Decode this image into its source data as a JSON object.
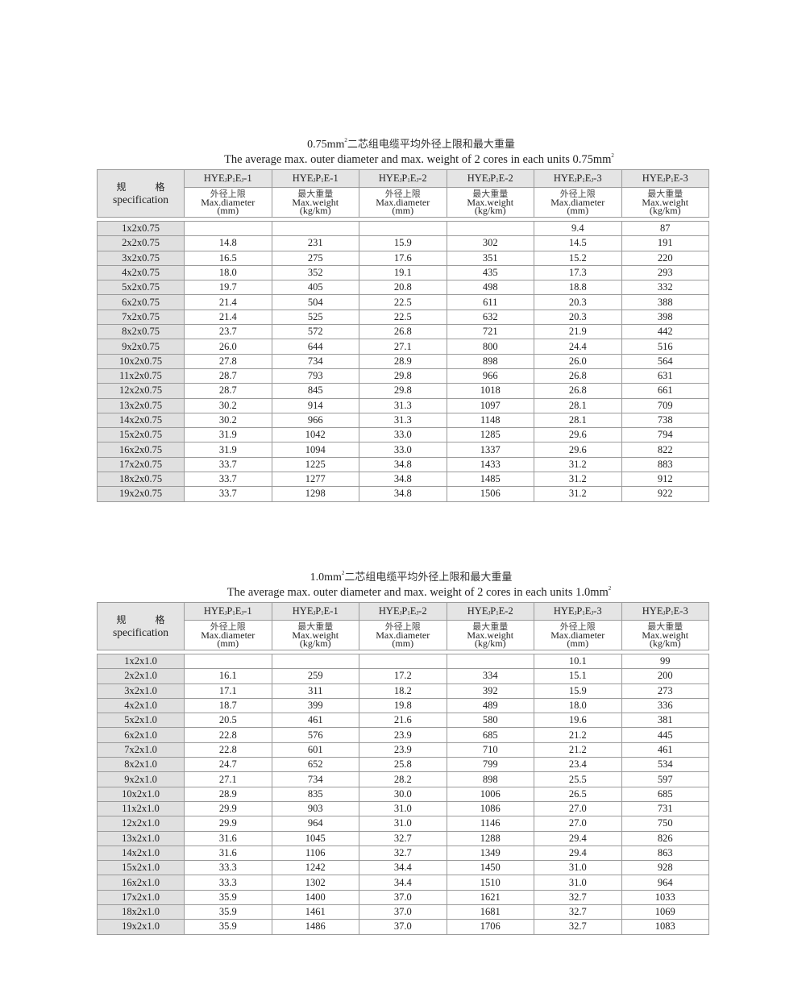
{
  "tables": [
    {
      "title_size": "0.75mm",
      "title_sup": "2",
      "title_cn": "二芯组电缆平均外径上限和最大重量",
      "subtitle": "The average max. outer diameter and max. weight of  2 cores in each units  0.75mm",
      "subtitle_sup": "2",
      "rows": [
        [
          "1x2x0.75",
          "",
          "",
          "",
          "",
          "9.4",
          "87"
        ],
        [
          "2x2x0.75",
          "14.8",
          "231",
          "15.9",
          "302",
          "14.5",
          "191"
        ],
        [
          "3x2x0.75",
          "16.5",
          "275",
          "17.6",
          "351",
          "15.2",
          "220"
        ],
        [
          "4x2x0.75",
          "18.0",
          "352",
          "19.1",
          "435",
          "17.3",
          "293"
        ],
        [
          "5x2x0.75",
          "19.7",
          "405",
          "20.8",
          "498",
          "18.8",
          "332"
        ],
        [
          "6x2x0.75",
          "21.4",
          "504",
          "22.5",
          "611",
          "20.3",
          "388"
        ],
        [
          "7x2x0.75",
          "21.4",
          "525",
          "22.5",
          "632",
          "20.3",
          "398"
        ],
        [
          "8x2x0.75",
          "23.7",
          "572",
          "26.8",
          "721",
          "21.9",
          "442"
        ],
        [
          "9x2x0.75",
          "26.0",
          "644",
          "27.1",
          "800",
          "24.4",
          "516"
        ],
        [
          "10x2x0.75",
          "27.8",
          "734",
          "28.9",
          "898",
          "26.0",
          "564"
        ],
        [
          "11x2x0.75",
          "28.7",
          "793",
          "29.8",
          "966",
          "26.8",
          "631"
        ],
        [
          "12x2x0.75",
          "28.7",
          "845",
          "29.8",
          "1018",
          "26.8",
          "661"
        ],
        [
          "13x2x0.75",
          "30.2",
          "914",
          "31.3",
          "1097",
          "28.1",
          "709"
        ],
        [
          "14x2x0.75",
          "30.2",
          "966",
          "31.3",
          "1148",
          "28.1",
          "738"
        ],
        [
          "15x2x0.75",
          "31.9",
          "1042",
          "33.0",
          "1285",
          "29.6",
          "794"
        ],
        [
          "16x2x0.75",
          "31.9",
          "1094",
          "33.0",
          "1337",
          "29.6",
          "822"
        ],
        [
          "17x2x0.75",
          "33.7",
          "1225",
          "34.8",
          "1433",
          "31.2",
          "883"
        ],
        [
          "18x2x0.75",
          "33.7",
          "1277",
          "34.8",
          "1485",
          "31.2",
          "912"
        ],
        [
          "19x2x0.75",
          "33.7",
          "1298",
          "34.8",
          "1506",
          "31.2",
          "922"
        ]
      ]
    },
    {
      "title_size": "1.0mm",
      "title_sup": "2",
      "title_cn": "二芯组电缆平均外径上限和最大重量",
      "subtitle": "The average max. outer diameter and max. weight of  2 cores in each units  1.0mm",
      "subtitle_sup": "2",
      "rows": [
        [
          "1x2x1.0",
          "",
          "",
          "",
          "",
          "10.1",
          "99"
        ],
        [
          "2x2x1.0",
          "16.1",
          "259",
          "17.2",
          "334",
          "15.1",
          "200"
        ],
        [
          "3x2x1.0",
          "17.1",
          "311",
          "18.2",
          "392",
          "15.9",
          "273"
        ],
        [
          "4x2x1.0",
          "18.7",
          "399",
          "19.8",
          "489",
          "18.0",
          "336"
        ],
        [
          "5x2x1.0",
          "20.5",
          "461",
          "21.6",
          "580",
          "19.6",
          "381"
        ],
        [
          "6x2x1.0",
          "22.8",
          "576",
          "23.9",
          "685",
          "21.2",
          "445"
        ],
        [
          "7x2x1.0",
          "22.8",
          "601",
          "23.9",
          "710",
          "21.2",
          "461"
        ],
        [
          "8x2x1.0",
          "24.7",
          "652",
          "25.8",
          "799",
          "23.4",
          "534"
        ],
        [
          "9x2x1.0",
          "27.1",
          "734",
          "28.2",
          "898",
          "25.5",
          "597"
        ],
        [
          "10x2x1.0",
          "28.9",
          "835",
          "30.0",
          "1006",
          "26.5",
          "685"
        ],
        [
          "11x2x1.0",
          "29.9",
          "903",
          "31.0",
          "1086",
          "27.0",
          "731"
        ],
        [
          "12x2x1.0",
          "29.9",
          "964",
          "31.0",
          "1146",
          "27.0",
          "750"
        ],
        [
          "13x2x1.0",
          "31.6",
          "1045",
          "32.7",
          "1288",
          "29.4",
          "826"
        ],
        [
          "14x2x1.0",
          "31.6",
          "1106",
          "32.7",
          "1349",
          "29.4",
          "863"
        ],
        [
          "15x2x1.0",
          "33.3",
          "1242",
          "34.4",
          "1450",
          "31.0",
          "928"
        ],
        [
          "16x2x1.0",
          "33.3",
          "1302",
          "34.4",
          "1510",
          "31.0",
          "964"
        ],
        [
          "17x2x1.0",
          "35.9",
          "1400",
          "37.0",
          "1621",
          "32.7",
          "1033"
        ],
        [
          "18x2x1.0",
          "35.9",
          "1461",
          "37.0",
          "1681",
          "32.7",
          "1069"
        ],
        [
          "19x2x1.0",
          "35.9",
          "1486",
          "37.0",
          "1706",
          "32.7",
          "1083"
        ]
      ]
    }
  ],
  "header": {
    "spec_cn": "规　　　格",
    "spec_en": "specification",
    "models": [
      [
        [
          "HYE",
          ""
        ],
        [
          "J",
          "sub"
        ],
        [
          "P",
          ""
        ],
        [
          "1",
          "sub"
        ],
        [
          "E",
          ""
        ],
        [
          "J",
          "sub"
        ],
        [
          "-1",
          ""
        ]
      ],
      [
        [
          "HYE",
          ""
        ],
        [
          "J",
          "sub"
        ],
        [
          "P",
          ""
        ],
        [
          "1",
          "sub"
        ],
        [
          "E-1",
          ""
        ]
      ],
      [
        [
          "HYE",
          ""
        ],
        [
          "J",
          "sub"
        ],
        [
          "P",
          ""
        ],
        [
          "1",
          "sub"
        ],
        [
          "E",
          ""
        ],
        [
          "J",
          "sub"
        ],
        [
          "-2",
          ""
        ]
      ],
      [
        [
          "HYE",
          ""
        ],
        [
          "J",
          "sub"
        ],
        [
          "P",
          ""
        ],
        [
          "1",
          "sub"
        ],
        [
          "E-2",
          ""
        ]
      ],
      [
        [
          "HYE",
          ""
        ],
        [
          "J",
          "sub"
        ],
        [
          "P",
          ""
        ],
        [
          "1",
          "sub"
        ],
        [
          "E",
          ""
        ],
        [
          "J",
          "sub"
        ],
        [
          "-3",
          ""
        ]
      ],
      [
        [
          "HYE",
          ""
        ],
        [
          "J",
          "sub"
        ],
        [
          "P",
          ""
        ],
        [
          "1",
          "sub"
        ],
        [
          "E-3",
          ""
        ]
      ]
    ],
    "units": [
      {
        "cn": "外径上限",
        "en": "Max.diameter",
        "unit": "(mm)"
      },
      {
        "cn": "最大重量",
        "en": "Max.weight",
        "unit": "(kg/km)"
      },
      {
        "cn": "外径上限",
        "en": "Max.diameter",
        "unit": "(mm)"
      },
      {
        "cn": "最大重量",
        "en": "Max.weight",
        "unit": "(kg/km)"
      },
      {
        "cn": "外径上限",
        "en": "Max.diameter",
        "unit": "(mm)"
      },
      {
        "cn": "最大重量",
        "en": "Max.weight",
        "unit": "(kg/km)"
      }
    ]
  }
}
